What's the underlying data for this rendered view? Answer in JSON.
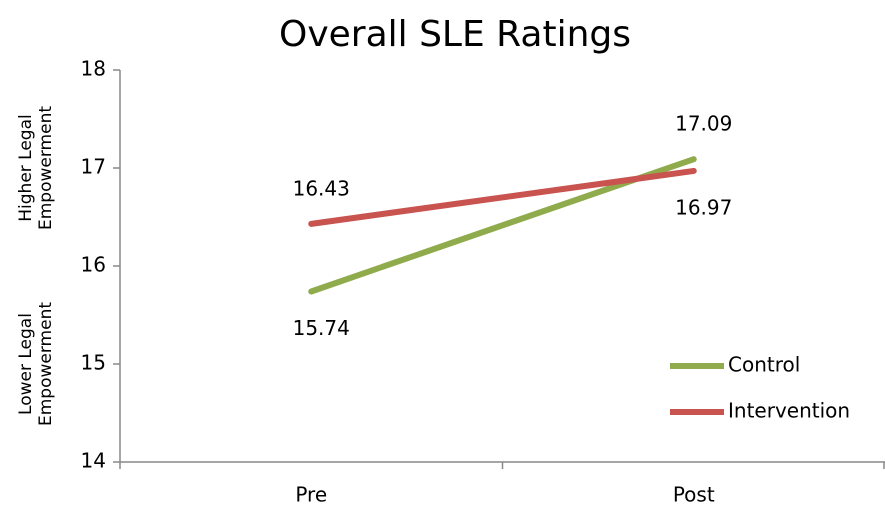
{
  "chart_data": {
    "type": "line",
    "title": "Overall SLE Ratings",
    "categories": [
      "Pre",
      "Post"
    ],
    "series": [
      {
        "name": "Control",
        "color": "#8fab4c",
        "values": [
          15.74,
          17.09
        ]
      },
      {
        "name": "Intervention",
        "color": "#c8534f",
        "values": [
          16.43,
          16.97
        ]
      }
    ],
    "ylim": [
      14,
      18
    ],
    "yticks": [
      14,
      15,
      16,
      17,
      18
    ],
    "y_axis_annotations": [
      [
        "Higher Legal",
        "Empowerment"
      ],
      [
        "Lower Legal",
        "Empowerment"
      ]
    ],
    "data_labels": true,
    "legend": "lower right"
  }
}
